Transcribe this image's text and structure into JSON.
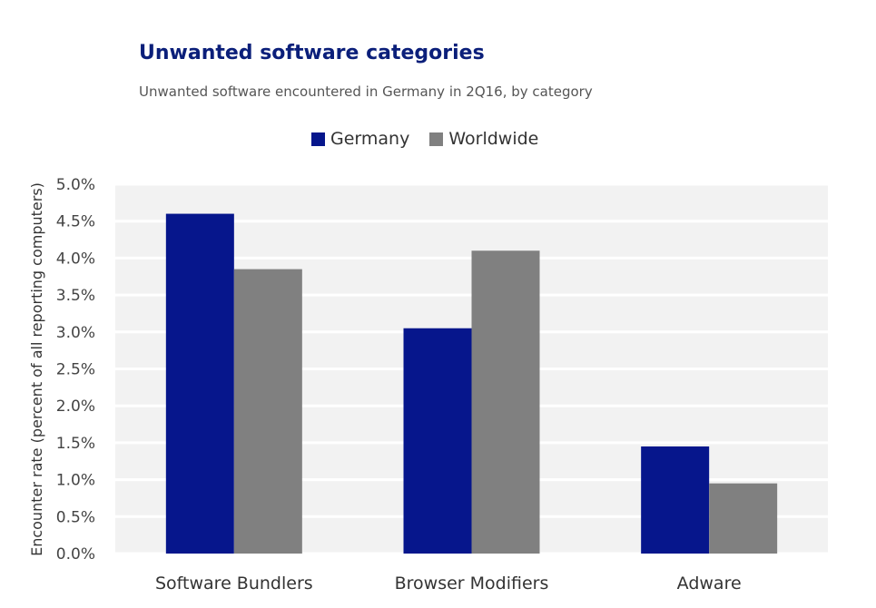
{
  "chart_data": {
    "type": "bar",
    "title": "Unwanted software categories",
    "subtitle": "Unwanted software encountered in Germany in 2Q16, by category",
    "ylabel": "Encounter rate (percent of all reporting computers)",
    "xlabel": "",
    "categories": [
      "Software Bundlers",
      "Browser Modifiers",
      "Adware"
    ],
    "series": [
      {
        "name": "Germany",
        "color": "#06168c",
        "values": [
          4.6,
          3.05,
          1.45
        ]
      },
      {
        "name": "Worldwide",
        "color": "#808080",
        "values": [
          3.85,
          4.1,
          0.95
        ]
      }
    ],
    "ylim": [
      0,
      5
    ],
    "yticks": [
      "0.0%",
      "0.5%",
      "1.0%",
      "1.5%",
      "2.0%",
      "2.5%",
      "3.0%",
      "3.5%",
      "4.0%",
      "4.5%",
      "5.0%"
    ],
    "legend_position": "top-center",
    "grid": true
  }
}
